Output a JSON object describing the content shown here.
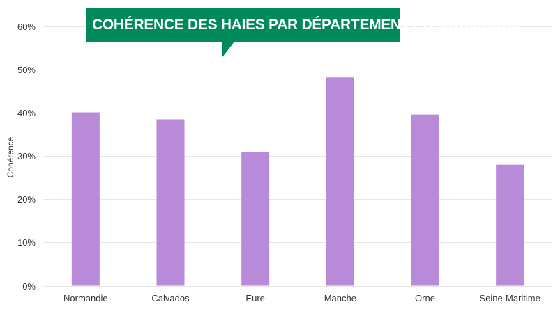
{
  "colors": {
    "bar": "#b88ad8",
    "title_background": "#008a5a",
    "title_text": "#ffffff",
    "grid": "#e6e6e6",
    "axis_text": "#333333"
  },
  "chart_data": {
    "type": "bar",
    "title": "Cohérence des haies par département en Normandie",
    "xlabel": "",
    "ylabel": "Cohérence",
    "categories": [
      "Normandie",
      "Calvados",
      "Eure",
      "Manche",
      "Orne",
      "Seine-Maritime"
    ],
    "values": [
      40.1,
      38.5,
      31.0,
      48.2,
      39.6,
      28.0
    ],
    "value_unit": "%",
    "ylim": [
      0,
      60
    ],
    "yticks": [
      "0%",
      "10%",
      "20%",
      "30%",
      "40%",
      "50%",
      "60%"
    ],
    "grid": true,
    "legend": "none"
  }
}
